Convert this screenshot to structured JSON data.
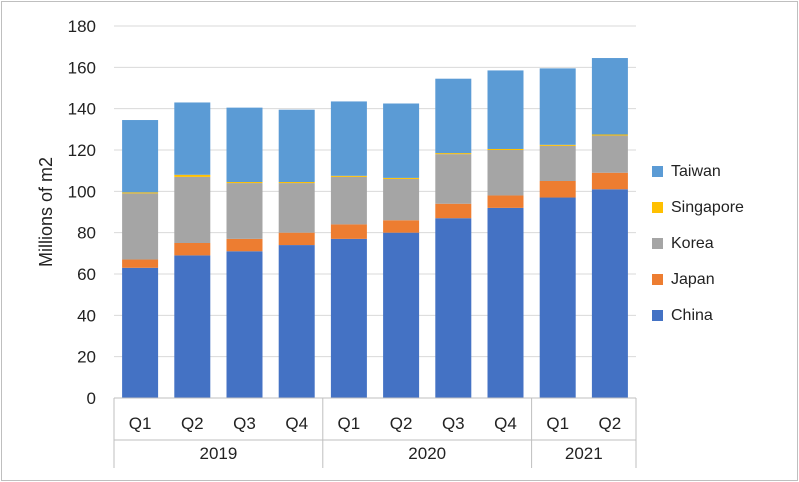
{
  "chart_data": {
    "type": "bar",
    "stacked": true,
    "ylabel": "Millions of m2",
    "ylim": [
      0,
      180
    ],
    "yticks": [
      0,
      20,
      40,
      60,
      80,
      100,
      120,
      140,
      160,
      180
    ],
    "grid": true,
    "legend_position": "right",
    "categories": [
      "Q1",
      "Q2",
      "Q3",
      "Q4",
      "Q1",
      "Q2",
      "Q3",
      "Q4",
      "Q1",
      "Q2"
    ],
    "groups": [
      {
        "label": "2019",
        "count": 4
      },
      {
        "label": "2020",
        "count": 4
      },
      {
        "label": "2021",
        "count": 2
      }
    ],
    "series": [
      {
        "name": "China",
        "color": "#4472c4",
        "values": [
          63,
          69,
          71,
          74,
          77,
          80,
          87,
          92,
          97,
          101
        ]
      },
      {
        "name": "Japan",
        "color": "#ed7d31",
        "values": [
          4,
          6,
          6,
          6,
          7,
          6,
          7,
          6,
          8,
          8
        ]
      },
      {
        "name": "Korea",
        "color": "#a5a5a5",
        "values": [
          32,
          32,
          27,
          24,
          23,
          20,
          24,
          22,
          17,
          18
        ]
      },
      {
        "name": "Singapore",
        "color": "#ffc000",
        "values": [
          0.5,
          1,
          0.5,
          0.5,
          0.5,
          0.5,
          0.5,
          0.5,
          0.5,
          0.5
        ]
      },
      {
        "name": "Taiwan",
        "color": "#5b9bd5",
        "values": [
          35,
          35,
          36,
          35,
          36,
          36,
          36,
          38,
          37,
          37
        ]
      }
    ]
  }
}
